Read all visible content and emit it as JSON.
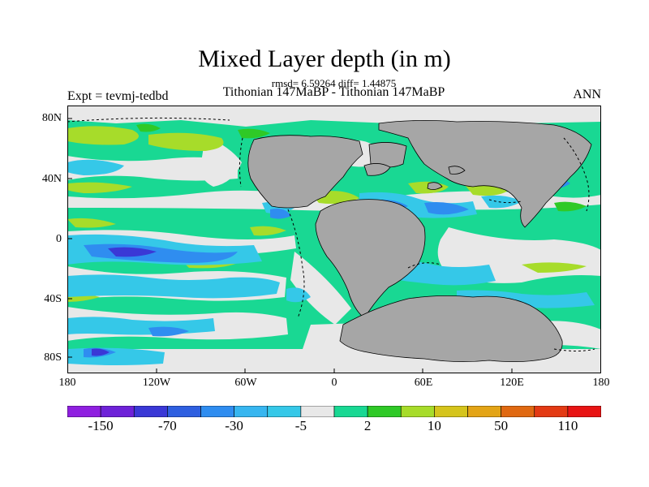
{
  "title": "Mixed Layer depth (in m)",
  "stats_line": "rmsd= 6.59264 diff= 1.44875",
  "subtitle": "Tithonian 147MaBP - Tithonian 147MaBP",
  "left_label": "Expt = tevmj-tedbd",
  "right_label": "ANN",
  "lat_ticks": [
    "80N",
    "40N",
    "0",
    "40S",
    "80S"
  ],
  "lon_ticks": [
    "180",
    "120W",
    "60W",
    "0",
    "60E",
    "120E",
    "180"
  ],
  "colorbar": {
    "colors": [
      "#8f1fe0",
      "#6e22d8",
      "#3a38d6",
      "#2e5fe0",
      "#2f8df0",
      "#37b6f0",
      "#35c8e8",
      "#e8e8e8",
      "#19d893",
      "#2fc927",
      "#a7dc2a",
      "#d5c41c",
      "#e3a416",
      "#e06912",
      "#e33a14",
      "#e81414"
    ],
    "labels": [
      "-150",
      "-70",
      "-30",
      "-5",
      "2",
      "10",
      "50",
      "110"
    ],
    "label_after_box": [
      1,
      3,
      5,
      7,
      9,
      11,
      13,
      15
    ]
  },
  "colors": {
    "land": "#a6a6a6",
    "neutral": "#e8e8e8",
    "green": "#19d893",
    "lime": "#2fc927",
    "yellowgreen": "#a7dc2a",
    "lightblue": "#35c8e8",
    "blue": "#2f8df0",
    "darkblue": "#3a38d6"
  }
}
